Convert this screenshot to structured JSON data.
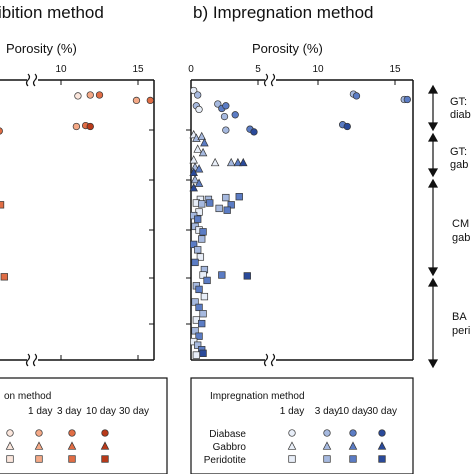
{
  "panels": [
    {
      "title": "ibition method",
      "xlabel": "Porosity (%)",
      "ticks": [
        "10",
        "15"
      ]
    },
    {
      "title": "b) Impregnation method",
      "xlabel": "Porosity (%)",
      "ticks": [
        "0",
        "5",
        "10",
        "15"
      ]
    }
  ],
  "zones": [
    {
      "line1": "GT:",
      "line2": "diab"
    },
    {
      "line1": "GT:",
      "line2": "gab"
    },
    {
      "line1": "CM",
      "line2": "gab"
    },
    {
      "line1": "BA",
      "line2": "peri"
    }
  ],
  "legend_left": {
    "title": "on method",
    "days": [
      "1 day",
      "3 day",
      "10 day",
      "30 day"
    ]
  },
  "legend_right": {
    "title": "Impregnation method",
    "days": [
      "1 day",
      "3 day",
      "10 day",
      "30 day"
    ],
    "rocks": [
      "Diabase",
      "Gabbro",
      "Peridotite"
    ]
  },
  "colors": {
    "imbibition": [
      "#fbe6dc",
      "#f4a987",
      "#e06d45",
      "#b83a1a"
    ],
    "impregnation": [
      "#e8eef8",
      "#a6b9df",
      "#5b7cc4",
      "#2a4a9a"
    ]
  },
  "chart_data": [
    {
      "type": "scatter",
      "title": "ibition method",
      "xlabel": "Porosity (%)",
      "xlim": [
        7,
        16
      ],
      "axis_break": [
        9.3,
        10.2
      ],
      "y_inverted": true,
      "series": [
        {
          "name": "Diabase",
          "points": [
            {
              "x": 11.1,
              "y": 1.1,
              "day": 0
            },
            {
              "x": 11.9,
              "y": 1.0,
              "day": 1
            },
            {
              "x": 12.5,
              "y": 1.0,
              "day": 2
            },
            {
              "x": 14.9,
              "y": 1.6,
              "day": 1
            },
            {
              "x": 15.8,
              "y": 1.6,
              "day": 2
            },
            {
              "x": 11.0,
              "y": 4.5,
              "day": 1
            },
            {
              "x": 11.6,
              "y": 4.4,
              "day": 2
            },
            {
              "x": 11.9,
              "y": 4.5,
              "day": 3
            },
            {
              "x": 7.1,
              "y": 5.0,
              "day": 2
            }
          ]
        },
        {
          "name": "Peridotite",
          "points": [
            {
              "x": 7.2,
              "y": 13.2,
              "day": 2
            },
            {
              "x": 7.5,
              "y": 21.2,
              "day": 2
            }
          ]
        }
      ]
    },
    {
      "type": "scatter",
      "title": "b) Impregnation method",
      "xlabel": "Porosity (%)",
      "xlim": [
        0,
        16
      ],
      "axis_break": [
        4.8,
        5.6
      ],
      "y_inverted": true,
      "series": [
        {
          "name": "Diabase",
          "points": [
            {
              "x": 0.2,
              "y": 0.5,
              "day": 0
            },
            {
              "x": 0.5,
              "y": 1.0,
              "day": 1
            },
            {
              "x": 0.4,
              "y": 2.2,
              "day": 1
            },
            {
              "x": 0.6,
              "y": 2.6,
              "day": 0
            },
            {
              "x": 2.0,
              "y": 2.0,
              "day": 1
            },
            {
              "x": 2.3,
              "y": 2.5,
              "day": 2
            },
            {
              "x": 2.6,
              "y": 2.2,
              "day": 2
            },
            {
              "x": 2.5,
              "y": 3.4,
              "day": 1
            },
            {
              "x": 3.3,
              "y": 3.2,
              "day": 2
            },
            {
              "x": 12.3,
              "y": 0.9,
              "day": 1
            },
            {
              "x": 12.5,
              "y": 1.1,
              "day": 2
            },
            {
              "x": 15.6,
              "y": 1.5,
              "day": 1
            },
            {
              "x": 15.8,
              "y": 1.5,
              "day": 2
            },
            {
              "x": 11.6,
              "y": 4.3,
              "day": 2
            },
            {
              "x": 11.9,
              "y": 4.5,
              "day": 3
            },
            {
              "x": 2.6,
              "y": 4.9,
              "day": 1
            },
            {
              "x": 4.4,
              "y": 4.8,
              "day": 2
            },
            {
              "x": 4.7,
              "y": 5.1,
              "day": 3
            }
          ]
        },
        {
          "name": "Gabbro",
          "points": [
            {
              "x": 0.2,
              "y": 5.4,
              "day": 0
            },
            {
              "x": 0.4,
              "y": 5.8,
              "day": 1
            },
            {
              "x": 0.8,
              "y": 5.6,
              "day": 1
            },
            {
              "x": 1.0,
              "y": 6.3,
              "day": 2
            },
            {
              "x": 0.5,
              "y": 7.0,
              "day": 0
            },
            {
              "x": 0.9,
              "y": 7.4,
              "day": 1
            },
            {
              "x": 0.2,
              "y": 8.2,
              "day": 0
            },
            {
              "x": 0.3,
              "y": 9.0,
              "day": 1
            },
            {
              "x": 0.6,
              "y": 9.2,
              "day": 2
            },
            {
              "x": 0.2,
              "y": 9.6,
              "day": 3
            },
            {
              "x": 1.8,
              "y": 8.5,
              "day": 0
            },
            {
              "x": 3.0,
              "y": 8.5,
              "day": 1
            },
            {
              "x": 3.5,
              "y": 8.5,
              "day": 2
            },
            {
              "x": 3.9,
              "y": 8.5,
              "day": 3
            },
            {
              "x": 0.3,
              "y": 10.4,
              "day": 1
            },
            {
              "x": 0.6,
              "y": 10.8,
              "day": 2
            },
            {
              "x": 0.2,
              "y": 11.3,
              "day": 3
            }
          ]
        },
        {
          "name": "Peridotite",
          "points": [
            {
              "x": 2.6,
              "y": 12.4,
              "day": 1
            },
            {
              "x": 3.6,
              "y": 12.3,
              "day": 2
            },
            {
              "x": 0.7,
              "y": 12.6,
              "day": 0
            },
            {
              "x": 1.3,
              "y": 12.6,
              "day": 1
            },
            {
              "x": 0.4,
              "y": 13.0,
              "day": 0
            },
            {
              "x": 0.8,
              "y": 13.1,
              "day": 1
            },
            {
              "x": 1.4,
              "y": 13.0,
              "day": 2
            },
            {
              "x": 3.0,
              "y": 13.2,
              "day": 2
            },
            {
              "x": 2.1,
              "y": 13.6,
              "day": 1
            },
            {
              "x": 2.7,
              "y": 13.8,
              "day": 2
            },
            {
              "x": 0.6,
              "y": 14.0,
              "day": 0
            },
            {
              "x": 0.2,
              "y": 14.4,
              "day": 1
            },
            {
              "x": 0.5,
              "y": 14.8,
              "day": 2
            },
            {
              "x": 0.3,
              "y": 15.6,
              "day": 1
            },
            {
              "x": 0.6,
              "y": 16.0,
              "day": 0
            },
            {
              "x": 0.9,
              "y": 16.2,
              "day": 2
            },
            {
              "x": 0.8,
              "y": 17.0,
              "day": 1
            },
            {
              "x": 0.2,
              "y": 17.6,
              "day": 2
            },
            {
              "x": 0.5,
              "y": 18.2,
              "day": 1
            },
            {
              "x": 0.7,
              "y": 19.0,
              "day": 0
            },
            {
              "x": 0.3,
              "y": 19.6,
              "day": 2
            },
            {
              "x": 1.0,
              "y": 20.4,
              "day": 1
            },
            {
              "x": 0.9,
              "y": 21.0,
              "day": 0
            },
            {
              "x": 1.2,
              "y": 21.6,
              "day": 2
            },
            {
              "x": 2.3,
              "y": 21.0,
              "day": 2
            },
            {
              "x": 4.2,
              "y": 21.1,
              "day": 3
            },
            {
              "x": 0.4,
              "y": 22.2,
              "day": 1
            },
            {
              "x": 0.6,
              "y": 22.6,
              "day": 2
            },
            {
              "x": 1.0,
              "y": 23.4,
              "day": 0
            },
            {
              "x": 0.3,
              "y": 24.0,
              "day": 1
            },
            {
              "x": 0.6,
              "y": 24.6,
              "day": 2
            },
            {
              "x": 0.9,
              "y": 25.3,
              "day": 1
            },
            {
              "x": 0.4,
              "y": 26.0,
              "day": 0
            },
            {
              "x": 0.8,
              "y": 26.4,
              "day": 2
            },
            {
              "x": 0.3,
              "y": 27.2,
              "day": 1
            },
            {
              "x": 0.6,
              "y": 27.8,
              "day": 2
            },
            {
              "x": 0.2,
              "y": 28.4,
              "day": 0
            },
            {
              "x": 0.5,
              "y": 28.8,
              "day": 1
            },
            {
              "x": 0.8,
              "y": 29.3,
              "day": 2
            },
            {
              "x": 0.9,
              "y": 29.7,
              "day": 3
            },
            {
              "x": 0.4,
              "y": 29.9,
              "day": 0
            }
          ]
        }
      ]
    }
  ]
}
